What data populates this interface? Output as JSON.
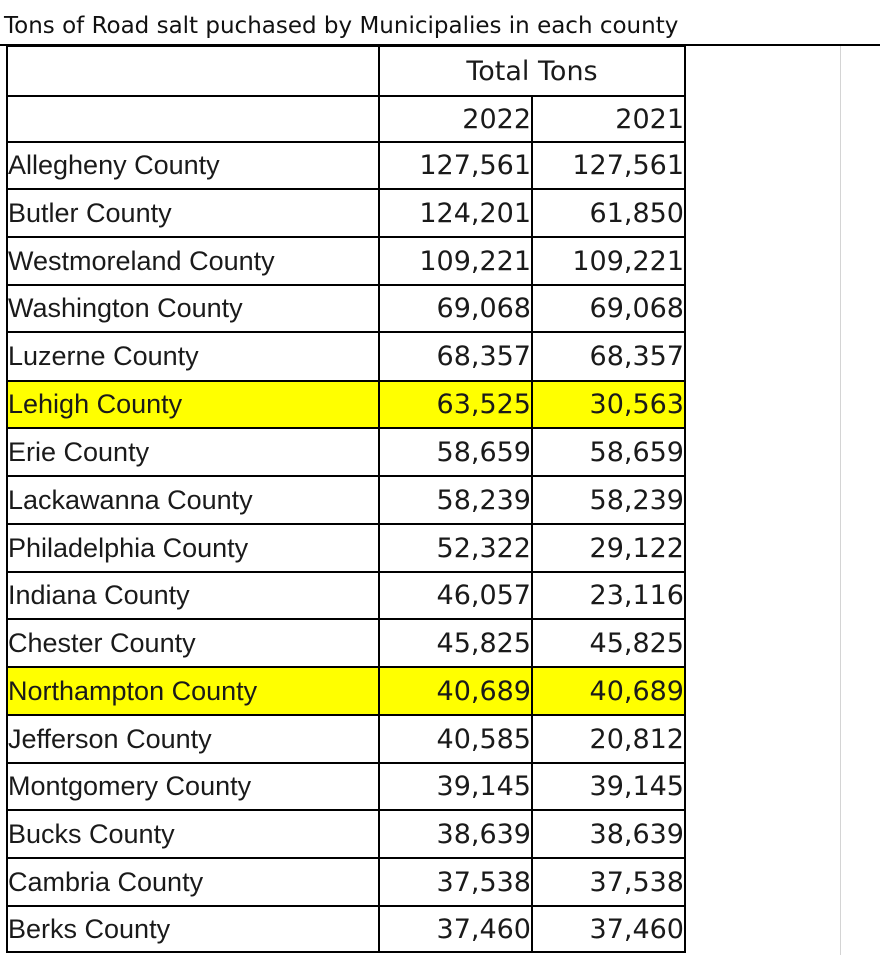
{
  "sheet": {
    "title": "Tons of Road salt puchased by Municipalies in each county",
    "header": {
      "group_label": "Total Tons",
      "year_1": "2022",
      "year_2": "2021"
    },
    "rows": [
      {
        "county": "Allegheny County",
        "y2022": "127,561",
        "y2021": "127,561",
        "highlight": false
      },
      {
        "county": "Butler County",
        "y2022": "124,201",
        "y2021": "61,850",
        "highlight": false
      },
      {
        "county": "Westmoreland County",
        "y2022": "109,221",
        "y2021": "109,221",
        "highlight": false
      },
      {
        "county": "Washington County",
        "y2022": "69,068",
        "y2021": "69,068",
        "highlight": false
      },
      {
        "county": "Luzerne County",
        "y2022": "68,357",
        "y2021": "68,357",
        "highlight": false
      },
      {
        "county": "Lehigh County",
        "y2022": "63,525",
        "y2021": "30,563",
        "highlight": true
      },
      {
        "county": "Erie County",
        "y2022": "58,659",
        "y2021": "58,659",
        "highlight": false
      },
      {
        "county": "Lackawanna County",
        "y2022": "58,239",
        "y2021": "58,239",
        "highlight": false
      },
      {
        "county": "Philadelphia County",
        "y2022": "52,322",
        "y2021": "29,122",
        "highlight": false
      },
      {
        "county": "Indiana County",
        "y2022": "46,057",
        "y2021": "23,116",
        "highlight": false
      },
      {
        "county": "Chester County",
        "y2022": "45,825",
        "y2021": "45,825",
        "highlight": false
      },
      {
        "county": "Northampton County",
        "y2022": "40,689",
        "y2021": "40,689",
        "highlight": true
      },
      {
        "county": "Jefferson County",
        "y2022": "40,585",
        "y2021": "20,812",
        "highlight": false
      },
      {
        "county": "Montgomery County",
        "y2022": "39,145",
        "y2021": "39,145",
        "highlight": false
      },
      {
        "county": "Bucks County",
        "y2022": "38,639",
        "y2021": "38,639",
        "highlight": false
      },
      {
        "county": "Cambria County",
        "y2022": "37,538",
        "y2021": "37,538",
        "highlight": false
      },
      {
        "county": "Berks County",
        "y2022": "37,460",
        "y2021": "37,460",
        "highlight": false
      }
    ],
    "highlight_color": "#ffff00"
  }
}
